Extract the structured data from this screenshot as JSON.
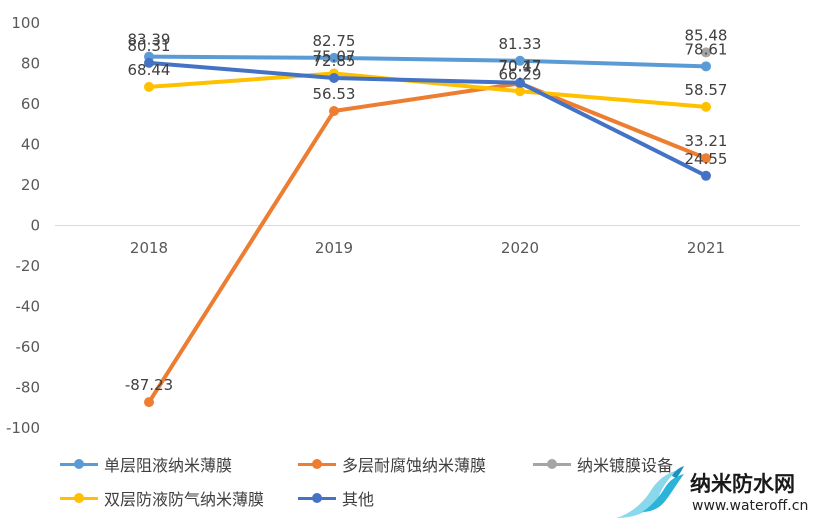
{
  "chart_data": {
    "type": "line",
    "categories": [
      "2018",
      "2019",
      "2020",
      "2021"
    ],
    "ylim": [
      -100,
      100
    ],
    "yticks": [
      100,
      80,
      60,
      40,
      20,
      0,
      -20,
      -40,
      -60,
      -80,
      -100
    ],
    "grid": false,
    "legend_position": "bottom",
    "series": [
      {
        "name": "单层阻液纳米薄膜",
        "color": "#5b9bd5",
        "values": [
          83.39,
          82.75,
          81.33,
          78.61
        ],
        "labels": [
          "83.39",
          "82.75",
          "81.33",
          "78.61"
        ]
      },
      {
        "name": "多层耐腐蚀纳米薄膜",
        "color": "#ed7d31",
        "values": [
          -87.23,
          56.53,
          70.17,
          33.21
        ],
        "labels": [
          "-87.23",
          "56.53",
          "70.17",
          "33.21"
        ]
      },
      {
        "name": "纳米镀膜设备",
        "color": "#a5a5a5",
        "values": [
          null,
          null,
          null,
          85.48
        ],
        "labels": [
          null,
          null,
          null,
          "85.48"
        ]
      },
      {
        "name": "双层防液防气纳米薄膜",
        "color": "#ffc000",
        "values": [
          68.44,
          75.07,
          66.29,
          58.57
        ],
        "labels": [
          "68.44",
          "75.07",
          "66.29",
          "58.57"
        ]
      },
      {
        "name": "其他",
        "color": "#4472c4",
        "values": [
          80.31,
          72.85,
          70.47,
          24.55
        ],
        "labels": [
          "80.31",
          "72.85",
          "70.47",
          "24.55"
        ]
      }
    ]
  },
  "watermark": {
    "brand": "纳米防水网",
    "url": "www.wateroff.cn"
  }
}
